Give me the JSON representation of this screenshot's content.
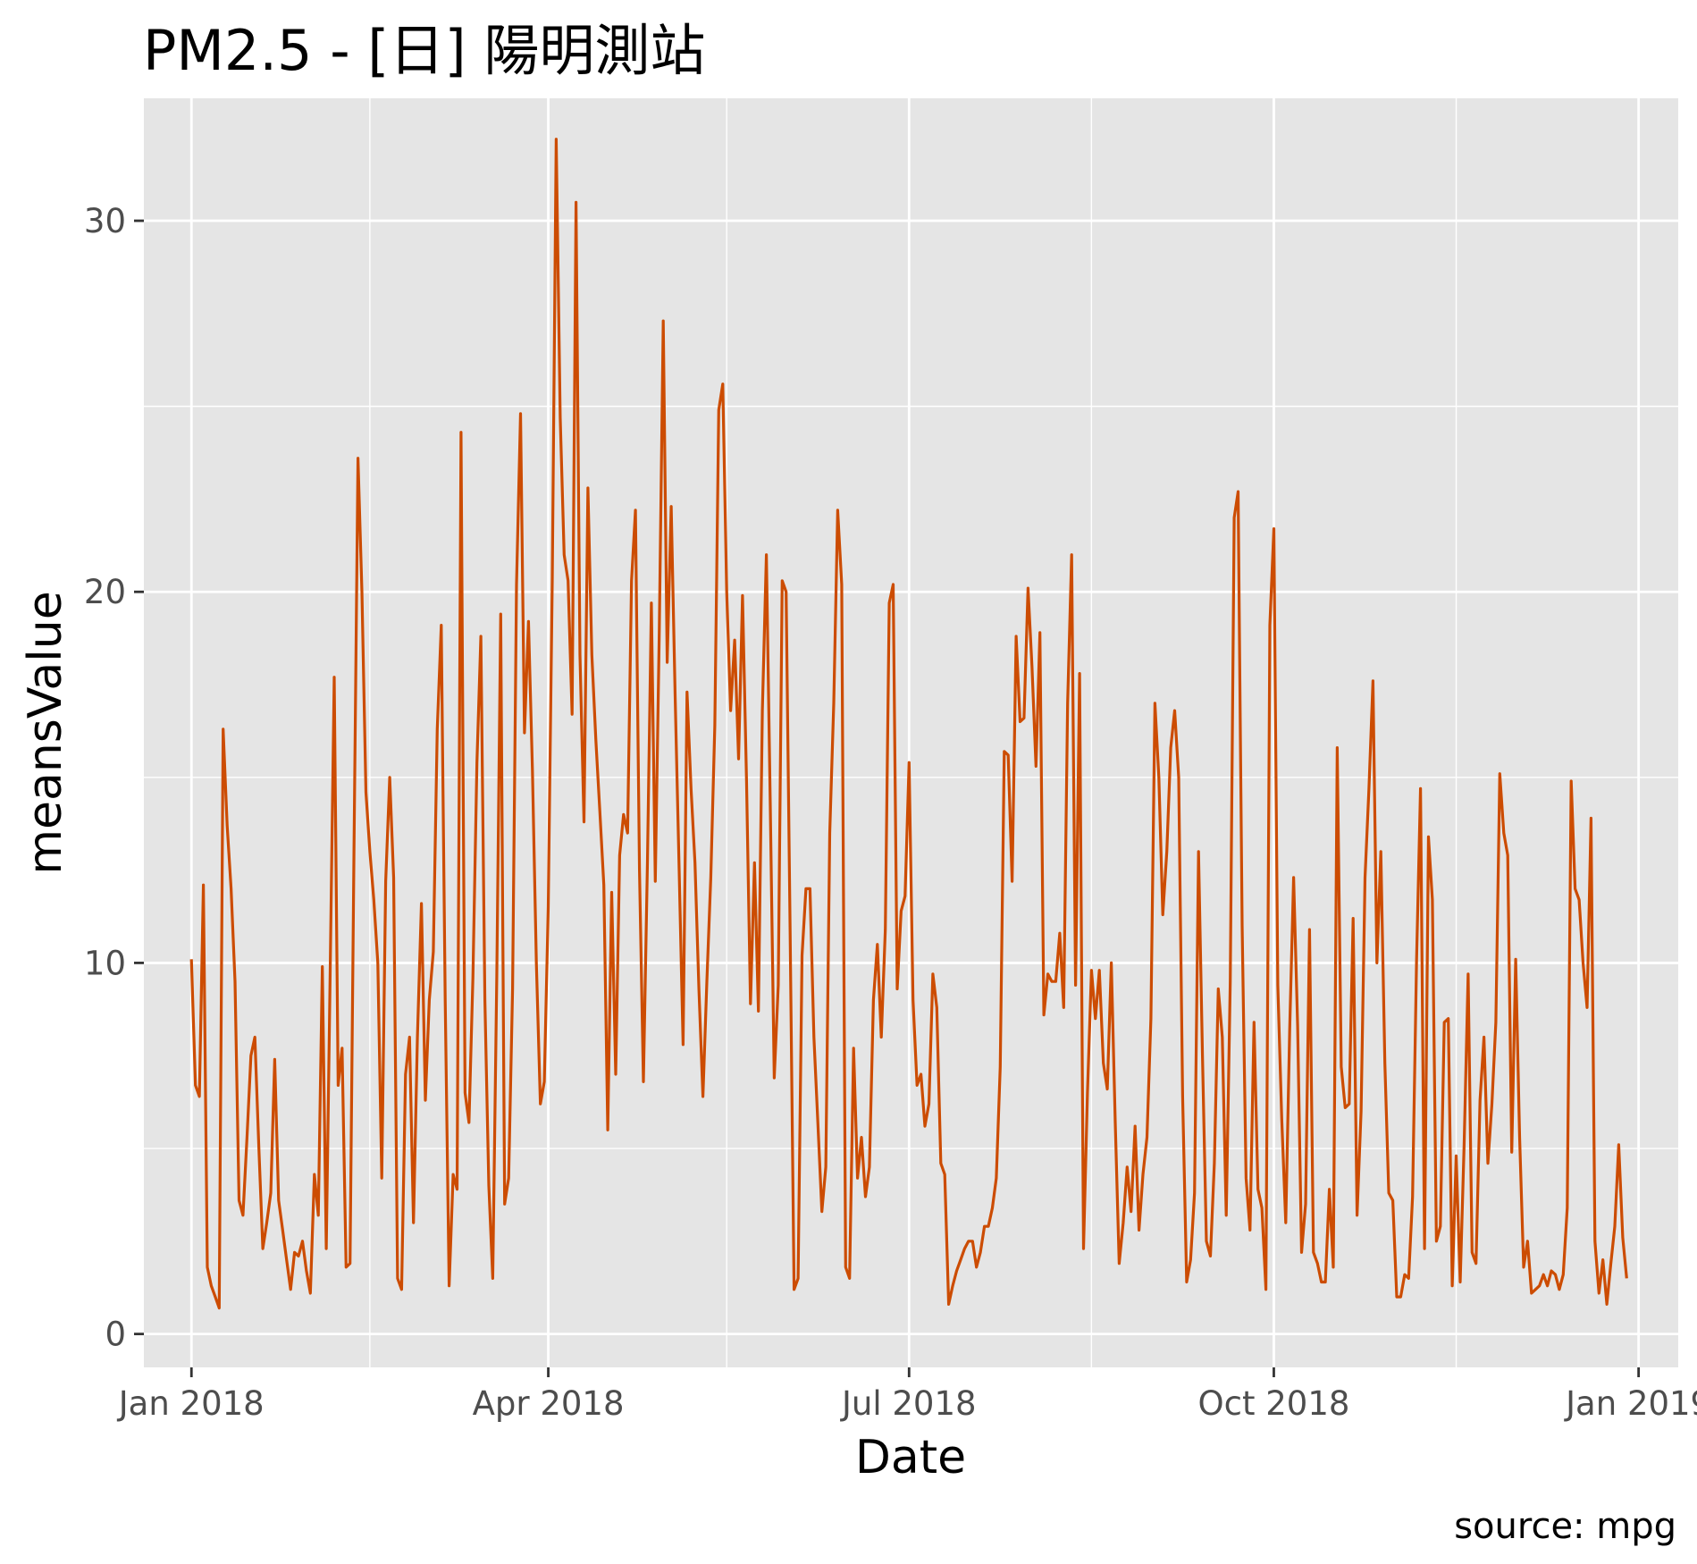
{
  "chart_data": {
    "type": "line",
    "title": "PM2.5 - [日]  陽明測站",
    "xlabel": "Date",
    "ylabel": "meansValue",
    "caption": "source: mpg",
    "x_start": "2018-01-01",
    "x_end": "2018-12-31",
    "xlim": [
      "2017-12-20",
      "2019-01-11"
    ],
    "ylim": [
      -0.9,
      33.3
    ],
    "x_ticks": [
      {
        "label": "Jan 2018",
        "date": "2018-01-01"
      },
      {
        "label": "Apr 2018",
        "date": "2018-04-01"
      },
      {
        "label": "Jul 2018",
        "date": "2018-07-01"
      },
      {
        "label": "Oct 2018",
        "date": "2018-10-01"
      },
      {
        "label": "Jan 2019",
        "date": "2019-01-01"
      }
    ],
    "x_minor_ticks": [
      "2018-02-15",
      "2018-05-16",
      "2018-08-16",
      "2018-11-16"
    ],
    "y_ticks": [
      0,
      10,
      20,
      30
    ],
    "y_minor_ticks": [
      5,
      15,
      25
    ],
    "grid": true,
    "line_color": "#cc4c02",
    "panel_color": "#e5e5e5",
    "grid_color": "#ffffff",
    "series": [
      {
        "values": [
          10.1,
          6.7,
          6.4,
          12.1,
          1.8,
          1.3,
          1.0,
          0.7,
          16.3,
          13.7,
          12.0,
          9.5,
          3.6,
          3.2,
          5.3,
          7.5,
          8.0,
          5.0,
          2.3,
          3.0,
          3.8,
          7.4,
          3.6,
          2.8,
          2.0,
          1.2,
          2.2,
          2.1,
          2.5,
          1.7,
          1.1,
          4.3,
          3.2,
          9.9,
          2.3,
          9.8,
          17.7,
          6.7,
          7.7,
          1.8,
          1.9,
          13.0,
          23.6,
          20.0,
          14.6,
          13.0,
          11.7,
          10.0,
          4.2,
          12.2,
          15.0,
          12.3,
          1.5,
          1.2,
          7.0,
          8.0,
          3.0,
          8.0,
          11.6,
          6.3,
          9.0,
          10.3,
          16.3,
          19.1,
          9.0,
          1.3,
          4.3,
          3.9,
          24.3,
          6.5,
          5.7,
          9.6,
          15.4,
          18.8,
          9.0,
          4.0,
          1.5,
          9.6,
          19.4,
          3.5,
          4.2,
          9.3,
          20.2,
          24.8,
          16.2,
          19.2,
          15.2,
          10.0,
          6.2,
          6.8,
          11.5,
          20.3,
          32.2,
          24.7,
          21.0,
          20.3,
          16.7,
          30.5,
          18.3,
          13.8,
          22.8,
          18.3,
          16.0,
          14.1,
          12.1,
          5.5,
          11.9,
          7.0,
          12.9,
          14.0,
          13.5,
          20.3,
          22.2,
          12.5,
          6.8,
          12.7,
          19.7,
          12.2,
          19.0,
          27.3,
          18.1,
          22.3,
          17.2,
          12.5,
          7.8,
          17.3,
          14.7,
          12.7,
          9.3,
          6.4,
          9.5,
          12.3,
          16.4,
          24.9,
          25.6,
          20.0,
          16.8,
          18.7,
          15.5,
          19.9,
          14.9,
          8.9,
          12.7,
          8.7,
          16.8,
          21.0,
          14.2,
          6.9,
          9.4,
          20.3,
          20.0,
          10.8,
          1.2,
          1.5,
          10.2,
          12.0,
          12.0,
          8.0,
          5.7,
          3.3,
          4.5,
          13.5,
          17.0,
          22.2,
          20.2,
          1.8,
          1.5,
          7.7,
          4.2,
          5.3,
          3.7,
          4.5,
          9.0,
          10.5,
          8.0,
          10.9,
          19.7,
          20.2,
          9.3,
          11.4,
          11.8,
          15.4,
          9.0,
          6.7,
          7.0,
          5.6,
          6.2,
          9.7,
          8.8,
          4.6,
          4.3,
          0.8,
          1.3,
          1.7,
          2.0,
          2.3,
          2.5,
          2.5,
          1.8,
          2.2,
          2.9,
          2.9,
          3.4,
          4.2,
          7.2,
          15.7,
          15.6,
          12.2,
          18.8,
          16.5,
          16.6,
          20.1,
          18.0,
          15.3,
          18.9,
          8.6,
          9.7,
          9.5,
          9.5,
          10.8,
          8.8,
          17.0,
          21.0,
          9.4,
          17.8,
          2.3,
          6.5,
          9.8,
          8.5,
          9.8,
          7.3,
          6.6,
          10.0,
          5.7,
          1.9,
          3.0,
          4.5,
          3.3,
          5.6,
          2.8,
          4.3,
          5.3,
          8.5,
          17.0,
          15.0,
          11.3,
          13.0,
          15.8,
          16.8,
          15.0,
          6.4,
          1.4,
          2.0,
          3.8,
          13.0,
          7.5,
          2.5,
          2.1,
          4.6,
          9.3,
          8.0,
          3.2,
          9.5,
          22.0,
          22.7,
          11.0,
          4.2,
          2.8,
          8.4,
          3.9,
          3.4,
          1.2,
          19.1,
          21.7,
          9.4,
          5.8,
          3.0,
          8.2,
          12.3,
          8.3,
          2.2,
          3.5,
          10.9,
          2.2,
          1.9,
          1.4,
          1.4,
          3.9,
          1.8,
          15.8,
          7.2,
          6.1,
          6.2,
          11.2,
          3.2,
          6.0,
          12.3,
          14.7,
          17.6,
          10.0,
          13.0,
          7.3,
          3.8,
          3.6,
          1.0,
          1.0,
          1.6,
          1.5,
          3.7,
          10.1,
          14.7,
          2.3,
          13.4,
          11.7,
          2.5,
          2.9,
          8.4,
          8.5,
          1.3,
          4.8,
          1.4,
          5.1,
          9.7,
          2.2,
          1.9,
          6.3,
          8.0,
          4.6,
          6.2,
          8.4,
          15.1,
          13.5,
          12.9,
          4.9,
          10.1,
          5.3,
          1.8,
          2.5,
          1.1,
          1.2,
          1.3,
          1.6,
          1.3,
          1.7,
          1.6,
          1.2,
          1.6,
          3.4,
          14.9,
          12.0,
          11.7,
          10.0,
          8.8,
          13.9,
          2.5,
          1.1,
          2.0,
          0.8,
          1.9,
          2.9,
          5.1,
          2.6,
          1.5
        ]
      }
    ]
  }
}
